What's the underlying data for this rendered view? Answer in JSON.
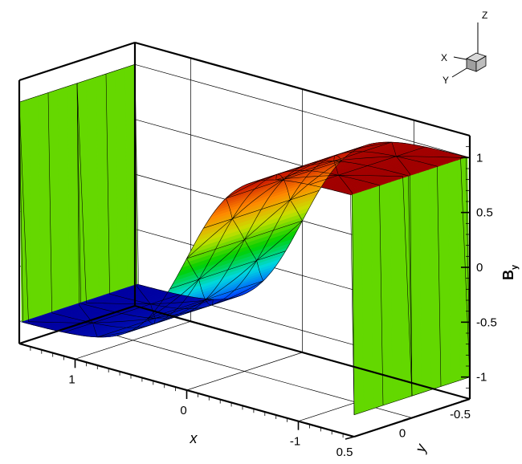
{
  "chart_data": {
    "type": "surface",
    "x_axis": {
      "title": "x",
      "ticks": [
        1,
        0,
        -1
      ],
      "tick_labels": [
        "1",
        "0",
        "-1"
      ],
      "range": [
        1.5,
        -1.5
      ]
    },
    "y_axis": {
      "title": "y",
      "ticks": [
        -0.5,
        0,
        0.5
      ],
      "tick_labels": [
        "-0.5",
        "0",
        "0.5"
      ],
      "range": [
        -0.5,
        0.5
      ]
    },
    "z_axis": {
      "title": "B",
      "subscript": "y",
      "ticks": [
        1,
        0.5,
        0,
        -0.5,
        -1
      ],
      "tick_labels": [
        "1",
        "0.5",
        "0",
        "-0.5",
        "-1"
      ],
      "range": [
        -1.2,
        1.2
      ]
    },
    "surface": {
      "function": "tanh",
      "profile_x": [
        1.5,
        1.0,
        0.5,
        0.25,
        0.0,
        -0.25,
        -0.5,
        -1.0,
        -1.5
      ],
      "profile_z": [
        1.0,
        0.99,
        0.86,
        0.5,
        0.0,
        -0.5,
        -0.86,
        -0.99,
        -1.0
      ]
    },
    "colormap": [
      "#0000a0",
      "#0050ff",
      "#00d8e0",
      "#00d000",
      "#c8e000",
      "#ff8800",
      "#d02000",
      "#a00000"
    ],
    "grid": true,
    "orientation_axes": {
      "x": "X",
      "y": "Y",
      "z": "Z"
    }
  }
}
